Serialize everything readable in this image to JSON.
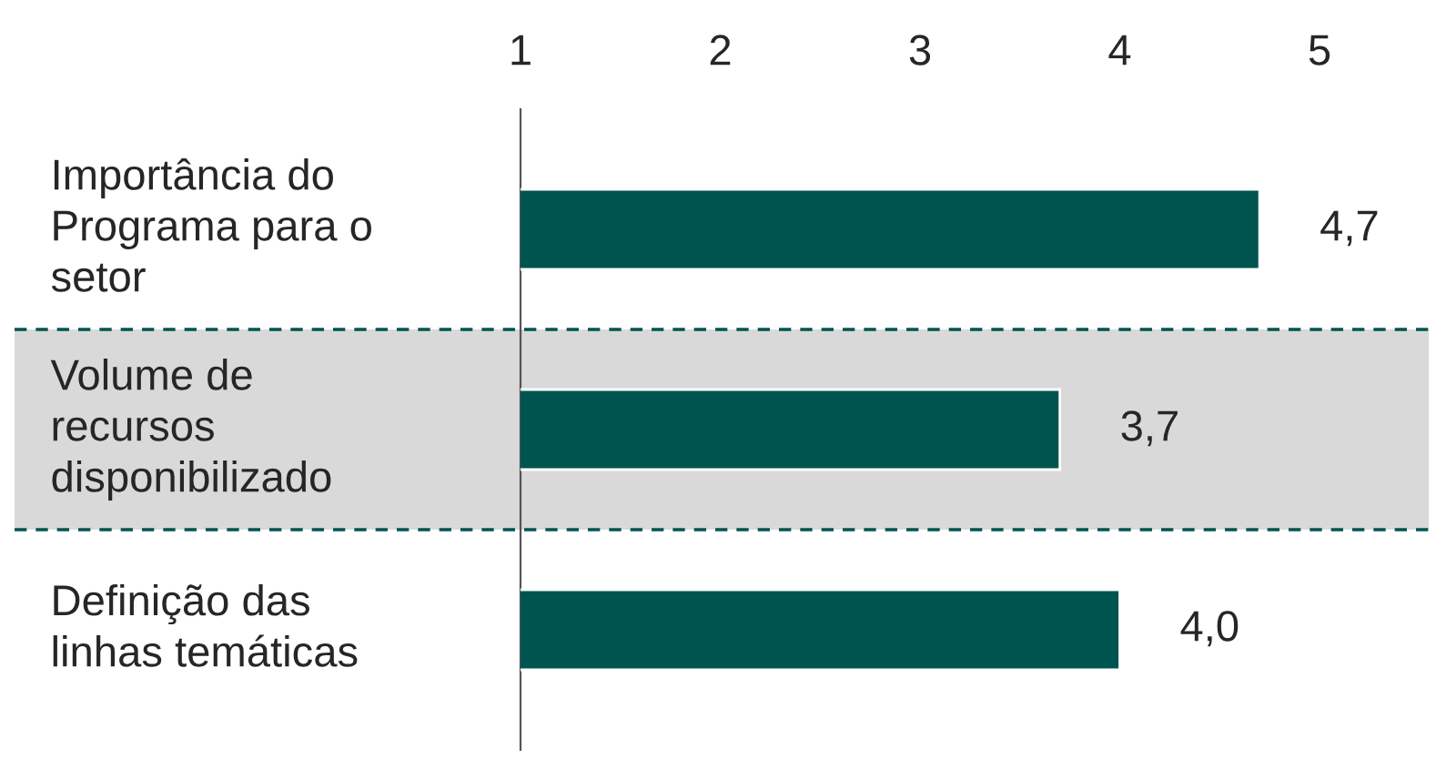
{
  "chart_data": {
    "type": "bar",
    "orientation": "horizontal",
    "categories": [
      "Importância do\nPrograma para o\nsetor",
      "Volume de\nrecursos\ndisponibilizado",
      "Definição das\nlinhas temáticas"
    ],
    "values": [
      4.7,
      3.7,
      4.0
    ],
    "value_labels": [
      "4,7",
      "3,7",
      "4,0"
    ],
    "colors": [
      "#005450",
      "#005450",
      "#005450"
    ],
    "bands": [
      {
        "axis": "y",
        "from": "Volume de\nrecursos\ndisponibilizado",
        "to": "Volume de\nrecursos\ndisponibilizado",
        "color": "#d9d9d9"
      }
    ],
    "xlim": [
      1,
      5
    ],
    "xticks": [
      1,
      2,
      3,
      4,
      5
    ],
    "grid": false,
    "legend": false
  }
}
